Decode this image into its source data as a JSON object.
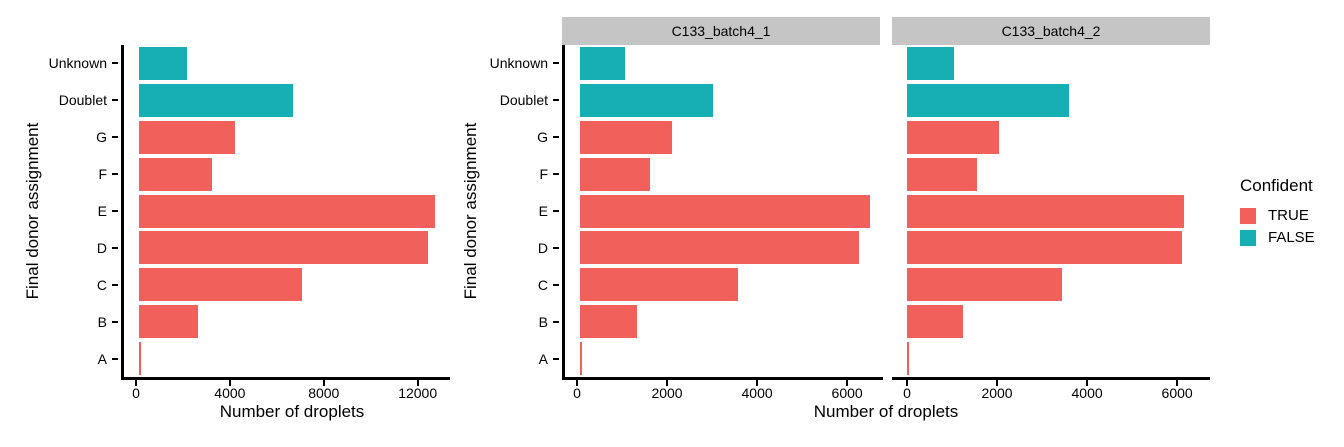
{
  "figure": {
    "background": "#ffffff",
    "axis_color": "#000000",
    "strip_background": "#c5c5c5"
  },
  "colors": {
    "confident_true": "#f2605c",
    "confident_false": "#16b0b4"
  },
  "legend": {
    "title": "Confident",
    "items": [
      {
        "label": "TRUE",
        "color_key": "confident_true"
      },
      {
        "label": "FALSE",
        "color_key": "confident_false"
      }
    ]
  },
  "chart_data": [
    {
      "type": "bar",
      "orientation": "horizontal",
      "panel": "All droplets",
      "strip_label": "",
      "xlabel": "Number of droplets",
      "ylabel": "Final donor assignment",
      "categories": [
        "Unknown",
        "Doublet",
        "G",
        "F",
        "E",
        "D",
        "C",
        "B",
        "A"
      ],
      "values": [
        2050,
        6550,
        4100,
        3100,
        12600,
        12300,
        6950,
        2500,
        100
      ],
      "confident": [
        false,
        false,
        true,
        true,
        true,
        true,
        true,
        true,
        true
      ],
      "x_ticks": [
        0,
        4000,
        8000,
        12000
      ],
      "xlim": [
        0,
        13250
      ],
      "grid": false,
      "legend_position": "right"
    },
    {
      "type": "bar",
      "orientation": "horizontal",
      "panel": "C133_batch4_1",
      "strip_label": "C133_batch4_1",
      "xlabel": "Number of droplets",
      "ylabel": "Final donor assignment",
      "categories": [
        "Unknown",
        "Doublet",
        "G",
        "F",
        "E",
        "D",
        "C",
        "B",
        "A"
      ],
      "values": [
        1000,
        2950,
        2050,
        1550,
        6450,
        6200,
        3500,
        1270,
        50
      ],
      "confident": [
        false,
        false,
        true,
        true,
        true,
        true,
        true,
        true,
        true
      ],
      "x_ticks": [
        0,
        2000,
        4000,
        6000
      ],
      "xlim": [
        0,
        6730
      ],
      "grid": false,
      "legend_position": "right"
    },
    {
      "type": "bar",
      "orientation": "horizontal",
      "panel": "C133_batch4_2",
      "strip_label": "C133_batch4_2",
      "xlabel": "Number of droplets",
      "ylabel": "Final donor assignment",
      "categories": [
        "Unknown",
        "Doublet",
        "G",
        "F",
        "E",
        "D",
        "C",
        "B",
        "A"
      ],
      "values": [
        1050,
        3600,
        2050,
        1550,
        6150,
        6100,
        3450,
        1240,
        50
      ],
      "confident": [
        false,
        false,
        true,
        true,
        true,
        true,
        true,
        true,
        true
      ],
      "x_ticks": [
        0,
        2000,
        4000,
        6000
      ],
      "xlim": [
        0,
        6730
      ],
      "grid": false,
      "legend_position": "right"
    }
  ]
}
